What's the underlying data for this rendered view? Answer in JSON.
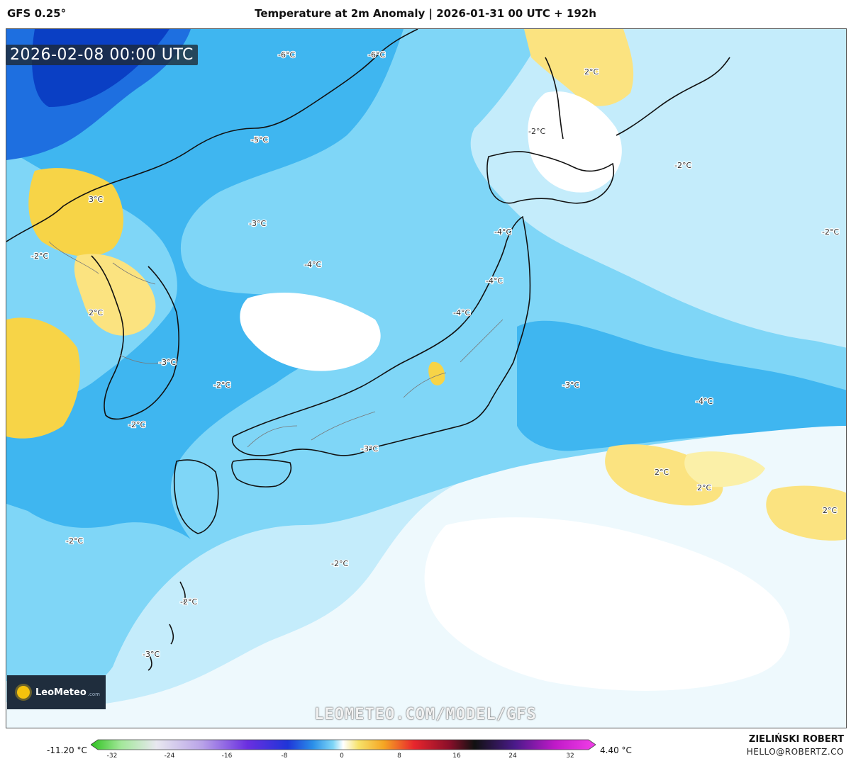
{
  "header": {
    "model": "GFS 0.25°",
    "title": "Temperature at 2m Anomaly | 2026-01-31 00 UTC + 192h"
  },
  "map": {
    "valid_time": "2026-02-08 00:00 UTC",
    "region": "Japan, Korea and surrounding seas",
    "contour_labels": [
      "-6°C",
      "-6°C",
      "-5°C",
      "-3°C",
      "-4°C",
      "-2°C",
      "3°C",
      "2°C",
      "-3°C",
      "-2°C",
      "-2°C",
      "-4°C",
      "-4°C",
      "-4°C",
      "-3°C",
      "-3°C",
      "-4°C",
      "-2°C",
      "-2°C",
      "-2°C",
      "-2°C",
      "-2°C",
      "2°C",
      "-2°C",
      "2°C",
      "2°C",
      "2°C",
      "-3°C"
    ],
    "colors": {
      "cold_deep": "#1e6fe0",
      "cold_mid": "#3fb6f0",
      "cold_light": "#7fd6f7",
      "cool_pale": "#c4ecfb",
      "near_zero": "#e9f7fd",
      "warm_light": "#fbf0a8",
      "warm": "#f7d447"
    }
  },
  "logo": {
    "name": "LeoMeteo",
    "domain": ".com"
  },
  "watermark": "LEOMETEO.COM/MODEL/GFS",
  "colorbar": {
    "min_label": "-11.20 °C",
    "max_label": "4.40 °C",
    "ticks": [
      "-32",
      "-24",
      "-16",
      "-8",
      "0",
      "8",
      "16",
      "24",
      "32"
    ]
  },
  "author": {
    "name": "ZIELIŃSKI ROBERT",
    "email": "HELLO@ROBERTZ.CO"
  }
}
